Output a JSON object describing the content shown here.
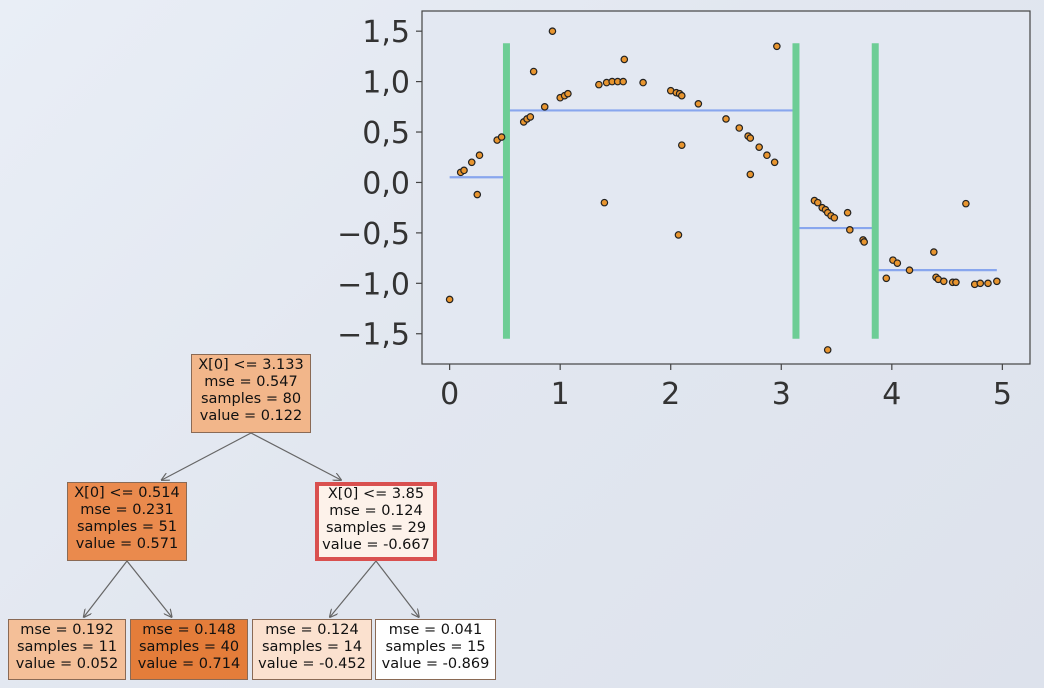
{
  "chart_data": {
    "type": "scatter",
    "title": "",
    "xlabel": "",
    "ylabel": "",
    "xlim": [
      -0.25,
      5.25
    ],
    "ylim": [
      -1.8,
      1.7
    ],
    "x_ticks": [
      0,
      1,
      2,
      3,
      4,
      5
    ],
    "x_tick_labels": [
      "0",
      "1",
      "2",
      "3",
      "4",
      "5"
    ],
    "y_ticks": [
      1.5,
      1.0,
      0.5,
      0.0,
      -0.5,
      -1.0,
      -1.5
    ],
    "y_tick_labels": [
      "1,5",
      "1,0",
      "0,5",
      "0,0",
      "−0,5",
      "−1,0",
      "−1,5"
    ],
    "grid": false,
    "colors": {
      "point_fill": "#e8952f",
      "point_edge": "#222222",
      "split_line": "#6dcd95",
      "prediction_line": "#88a6ee",
      "plot_bg": "#e3e8f2",
      "axes_edge": "#444444"
    },
    "points": [
      [
        0.0,
        -1.16
      ],
      [
        0.1,
        0.1
      ],
      [
        0.13,
        0.12
      ],
      [
        0.2,
        0.2
      ],
      [
        0.25,
        -0.12
      ],
      [
        0.27,
        0.27
      ],
      [
        0.43,
        0.42
      ],
      [
        0.47,
        0.45
      ],
      [
        0.67,
        0.6
      ],
      [
        0.7,
        0.63
      ],
      [
        0.73,
        0.65
      ],
      [
        0.76,
        1.1
      ],
      [
        0.86,
        0.75
      ],
      [
        0.93,
        1.5
      ],
      [
        1.0,
        0.84
      ],
      [
        1.04,
        0.86
      ],
      [
        1.07,
        0.88
      ],
      [
        1.35,
        0.97
      ],
      [
        1.4,
        -0.2
      ],
      [
        1.42,
        0.99
      ],
      [
        1.47,
        1.0
      ],
      [
        1.52,
        1.0
      ],
      [
        1.57,
        1.0
      ],
      [
        1.58,
        1.22
      ],
      [
        1.75,
        0.99
      ],
      [
        2.0,
        0.91
      ],
      [
        2.05,
        0.89
      ],
      [
        2.08,
        0.88
      ],
      [
        2.1,
        0.86
      ],
      [
        2.07,
        -0.52
      ],
      [
        2.1,
        0.37
      ],
      [
        2.25,
        0.78
      ],
      [
        2.5,
        0.63
      ],
      [
        2.62,
        0.54
      ],
      [
        2.7,
        0.46
      ],
      [
        2.72,
        0.44
      ],
      [
        2.72,
        0.08
      ],
      [
        2.8,
        0.35
      ],
      [
        2.87,
        0.27
      ],
      [
        2.94,
        0.2
      ],
      [
        2.96,
        1.35
      ],
      [
        3.3,
        -0.18
      ],
      [
        3.33,
        -0.2
      ],
      [
        3.37,
        -0.25
      ],
      [
        3.4,
        -0.27
      ],
      [
        3.42,
        -0.3
      ],
      [
        3.45,
        -0.33
      ],
      [
        3.48,
        -0.35
      ],
      [
        3.42,
        -1.66
      ],
      [
        3.6,
        -0.3
      ],
      [
        3.62,
        -0.47
      ],
      [
        3.74,
        -0.57
      ],
      [
        3.75,
        -0.59
      ],
      [
        3.95,
        -0.95
      ],
      [
        4.01,
        -0.77
      ],
      [
        4.05,
        -0.8
      ],
      [
        4.16,
        -0.87
      ],
      [
        4.4,
        -0.94
      ],
      [
        4.42,
        -0.96
      ],
      [
        4.38,
        -0.69
      ],
      [
        4.47,
        -0.98
      ],
      [
        4.55,
        -0.99
      ],
      [
        4.58,
        -0.99
      ],
      [
        4.67,
        -0.21
      ],
      [
        4.75,
        -1.01
      ],
      [
        4.8,
        -1.0
      ],
      [
        4.87,
        -1.0
      ],
      [
        4.95,
        -0.98
      ]
    ],
    "splits": [
      0.514,
      3.133,
      3.85
    ],
    "predictions": [
      {
        "x_start": 0.0,
        "x_end": 0.514,
        "value": 0.052
      },
      {
        "x_start": 0.514,
        "x_end": 3.133,
        "value": 0.714
      },
      {
        "x_start": 3.133,
        "x_end": 3.85,
        "value": -0.452
      },
      {
        "x_start": 3.85,
        "x_end": 4.95,
        "value": -0.869
      }
    ]
  },
  "tree": {
    "nodes": [
      {
        "id": "root",
        "lines": [
          "X[0] <= 3.133",
          "mse = 0.547",
          "samples = 80",
          "value = 0.122"
        ],
        "color": "#f2b68a",
        "highlight": false
      },
      {
        "id": "left",
        "lines": [
          "X[0] <= 0.514",
          "mse = 0.231",
          "samples = 51",
          "value = 0.571"
        ],
        "color": "#ea8a4d",
        "highlight": false
      },
      {
        "id": "right",
        "lines": [
          "X[0] <= 3.85",
          "mse = 0.124",
          "samples = 29",
          "value = -0.667"
        ],
        "color": "#fdf2ea",
        "highlight": true
      },
      {
        "id": "ll",
        "lines": [
          "mse = 0.192",
          "samples = 11",
          "value = 0.052"
        ],
        "color": "#f4bf98",
        "highlight": false
      },
      {
        "id": "lr",
        "lines": [
          "mse = 0.148",
          "samples = 40",
          "value = 0.714"
        ],
        "color": "#e47d3a",
        "highlight": false
      },
      {
        "id": "rl",
        "lines": [
          "mse = 0.124",
          "samples = 14",
          "value = -0.452"
        ],
        "color": "#fbe1cf",
        "highlight": false
      },
      {
        "id": "rr",
        "lines": [
          "mse = 0.041",
          "samples = 15",
          "value = -0.869"
        ],
        "color": "#ffffff",
        "highlight": false
      }
    ],
    "edges": [
      [
        "root",
        "left"
      ],
      [
        "root",
        "right"
      ],
      [
        "left",
        "ll"
      ],
      [
        "left",
        "lr"
      ],
      [
        "right",
        "rl"
      ],
      [
        "right",
        "rr"
      ]
    ]
  }
}
